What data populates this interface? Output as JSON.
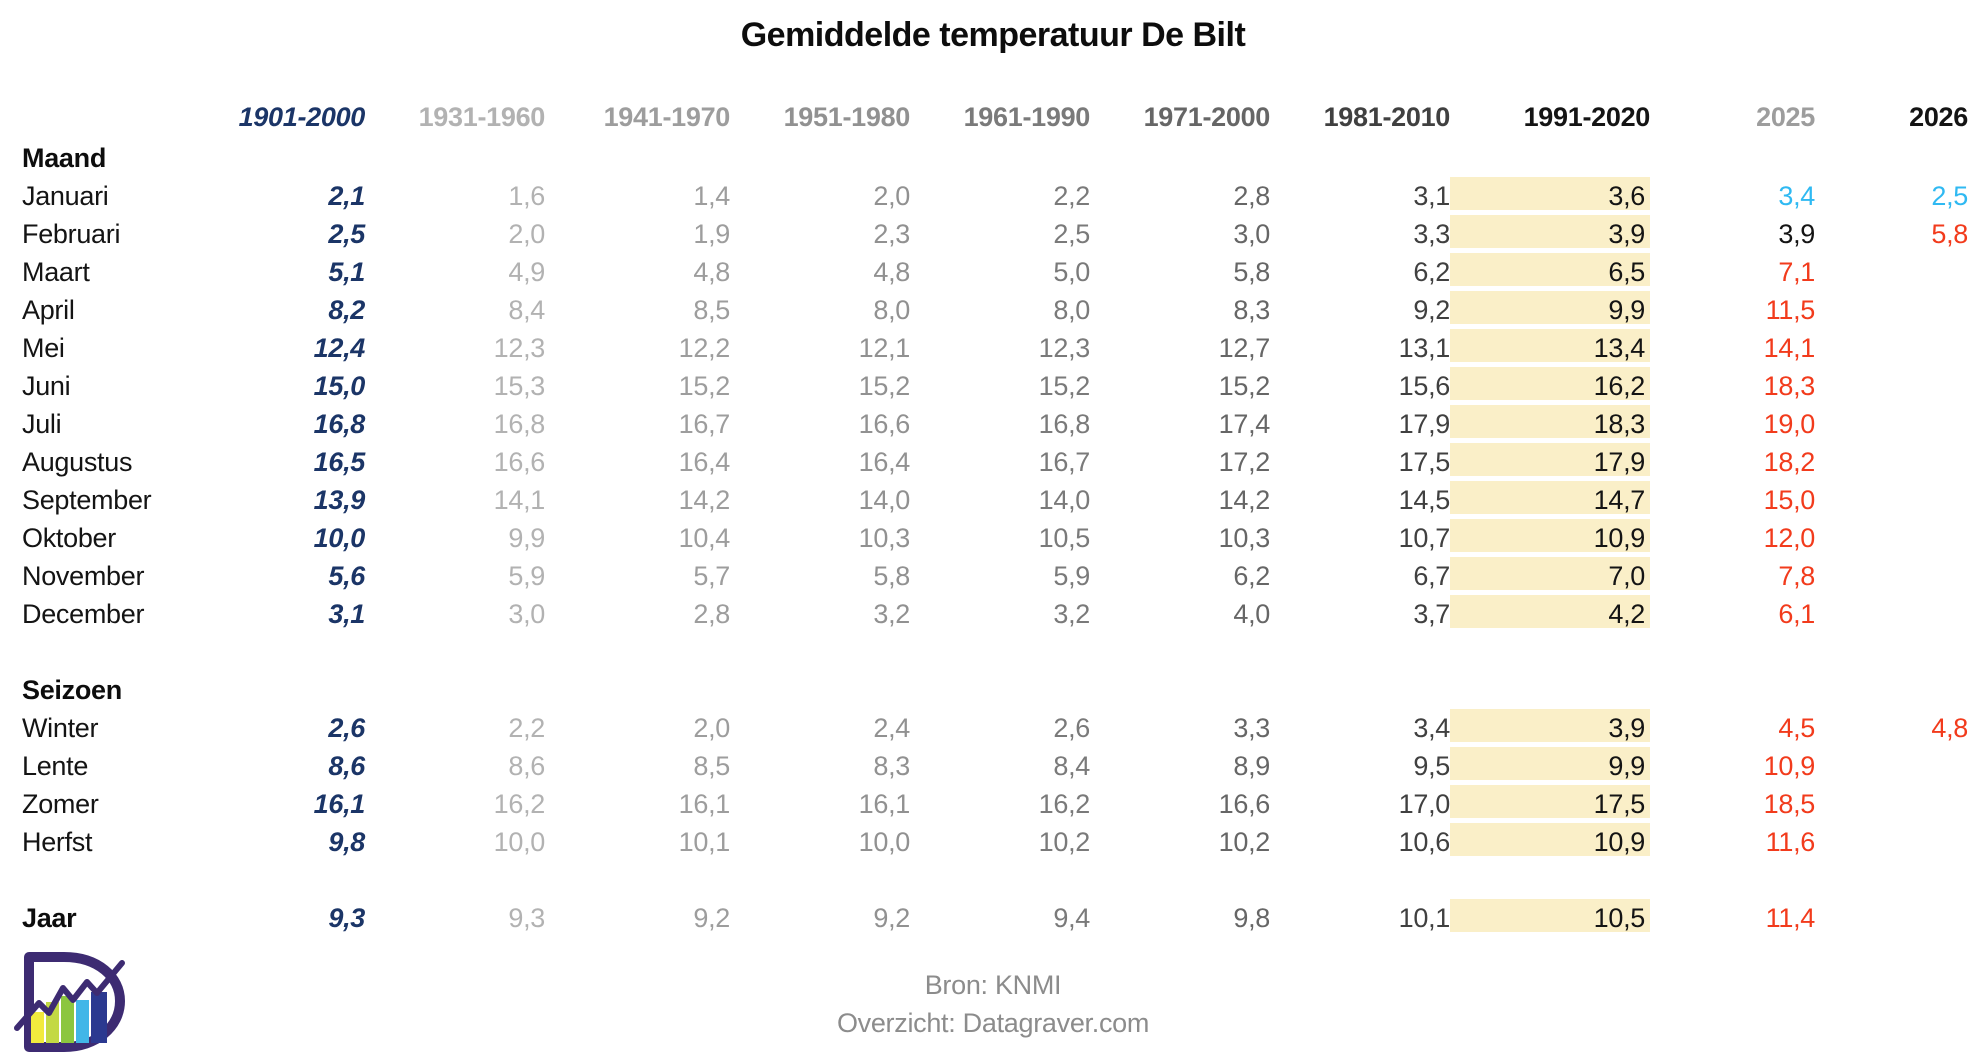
{
  "title": "Gemiddelde temperatuur De Bilt",
  "footer": {
    "source": "Bron: KNMI",
    "overview": "Overzicht: Datagraver.com"
  },
  "logo": {
    "name": "datagraver-logo"
  },
  "colors": {
    "navy": "#1b3567",
    "red": "#f23b1c",
    "blue": "#2fb9f2",
    "black": "#141414",
    "highlight_bg": "#faefc8",
    "footer_gray": "#8c8c8c"
  },
  "chart_data": {
    "type": "table",
    "title": "Gemiddelde temperatuur De Bilt",
    "unit": "degrees Celsius, comma decimal separator",
    "columns": [
      {
        "label": "1901-2000",
        "color": "#1b3567",
        "bold_italic": true
      },
      {
        "label": "1931-1960",
        "color": "#b2b2b2"
      },
      {
        "label": "1941-1970",
        "color": "#9d9d9d"
      },
      {
        "label": "1951-1980",
        "color": "#919191"
      },
      {
        "label": "1961-1990",
        "color": "#7a7a7a"
      },
      {
        "label": "1971-2000",
        "color": "#666666"
      },
      {
        "label": "1981-2010",
        "color": "#404040"
      },
      {
        "label": "1991-2020",
        "color": "#141414",
        "highlight": true
      },
      {
        "label": "2025",
        "color": "#9d9d9d",
        "data_color": "#f23b1c"
      },
      {
        "label": "2026",
        "color": "#141414",
        "data_color": "#f23b1c"
      }
    ],
    "sections": [
      {
        "header": "Maand",
        "rows": [
          {
            "label": "Januari",
            "values": [
              "2,1",
              "1,6",
              "1,4",
              "2,0",
              "2,2",
              "2,8",
              "3,1",
              "3,6",
              "3,4",
              "2,5"
            ],
            "cell_colors": {
              "8": "blue",
              "9": "blue"
            }
          },
          {
            "label": "Februari",
            "values": [
              "2,5",
              "2,0",
              "1,9",
              "2,3",
              "2,5",
              "3,0",
              "3,3",
              "3,9",
              "3,9",
              "5,8"
            ],
            "cell_colors": {
              "8": "black"
            }
          },
          {
            "label": "Maart",
            "values": [
              "5,1",
              "4,9",
              "4,8",
              "4,8",
              "5,0",
              "5,8",
              "6,2",
              "6,5",
              "7,1",
              ""
            ]
          },
          {
            "label": "April",
            "values": [
              "8,2",
              "8,4",
              "8,5",
              "8,0",
              "8,0",
              "8,3",
              "9,2",
              "9,9",
              "11,5",
              ""
            ]
          },
          {
            "label": "Mei",
            "values": [
              "12,4",
              "12,3",
              "12,2",
              "12,1",
              "12,3",
              "12,7",
              "13,1",
              "13,4",
              "14,1",
              ""
            ]
          },
          {
            "label": "Juni",
            "values": [
              "15,0",
              "15,3",
              "15,2",
              "15,2",
              "15,2",
              "15,2",
              "15,6",
              "16,2",
              "18,3",
              ""
            ]
          },
          {
            "label": "Juli",
            "values": [
              "16,8",
              "16,8",
              "16,7",
              "16,6",
              "16,8",
              "17,4",
              "17,9",
              "18,3",
              "19,0",
              ""
            ]
          },
          {
            "label": "Augustus",
            "values": [
              "16,5",
              "16,6",
              "16,4",
              "16,4",
              "16,7",
              "17,2",
              "17,5",
              "17,9",
              "18,2",
              ""
            ]
          },
          {
            "label": "September",
            "values": [
              "13,9",
              "14,1",
              "14,2",
              "14,0",
              "14,0",
              "14,2",
              "14,5",
              "14,7",
              "15,0",
              ""
            ]
          },
          {
            "label": "Oktober",
            "values": [
              "10,0",
              "9,9",
              "10,4",
              "10,3",
              "10,5",
              "10,3",
              "10,7",
              "10,9",
              "12,0",
              ""
            ]
          },
          {
            "label": "November",
            "values": [
              "5,6",
              "5,9",
              "5,7",
              "5,8",
              "5,9",
              "6,2",
              "6,7",
              "7,0",
              "7,8",
              ""
            ]
          },
          {
            "label": "December",
            "values": [
              "3,1",
              "3,0",
              "2,8",
              "3,2",
              "3,2",
              "4,0",
              "3,7",
              "4,2",
              "6,1",
              ""
            ]
          }
        ]
      },
      {
        "header": "Seizoen",
        "rows": [
          {
            "label": "Winter",
            "values": [
              "2,6",
              "2,2",
              "2,0",
              "2,4",
              "2,6",
              "3,3",
              "3,4",
              "3,9",
              "4,5",
              "4,8"
            ]
          },
          {
            "label": "Lente",
            "values": [
              "8,6",
              "8,6",
              "8,5",
              "8,3",
              "8,4",
              "8,9",
              "9,5",
              "9,9",
              "10,9",
              ""
            ]
          },
          {
            "label": "Zomer",
            "values": [
              "16,1",
              "16,2",
              "16,1",
              "16,1",
              "16,2",
              "16,6",
              "17,0",
              "17,5",
              "18,5",
              ""
            ]
          },
          {
            "label": "Herfst",
            "values": [
              "9,8",
              "10,0",
              "10,1",
              "10,0",
              "10,2",
              "10,2",
              "10,6",
              "10,9",
              "11,6",
              ""
            ]
          }
        ]
      },
      {
        "header": null,
        "rows": [
          {
            "label": "Jaar",
            "bold": true,
            "values": [
              "9,3",
              "9,3",
              "9,2",
              "9,2",
              "9,4",
              "9,8",
              "10,1",
              "10,5",
              "11,4",
              ""
            ]
          }
        ]
      }
    ]
  }
}
